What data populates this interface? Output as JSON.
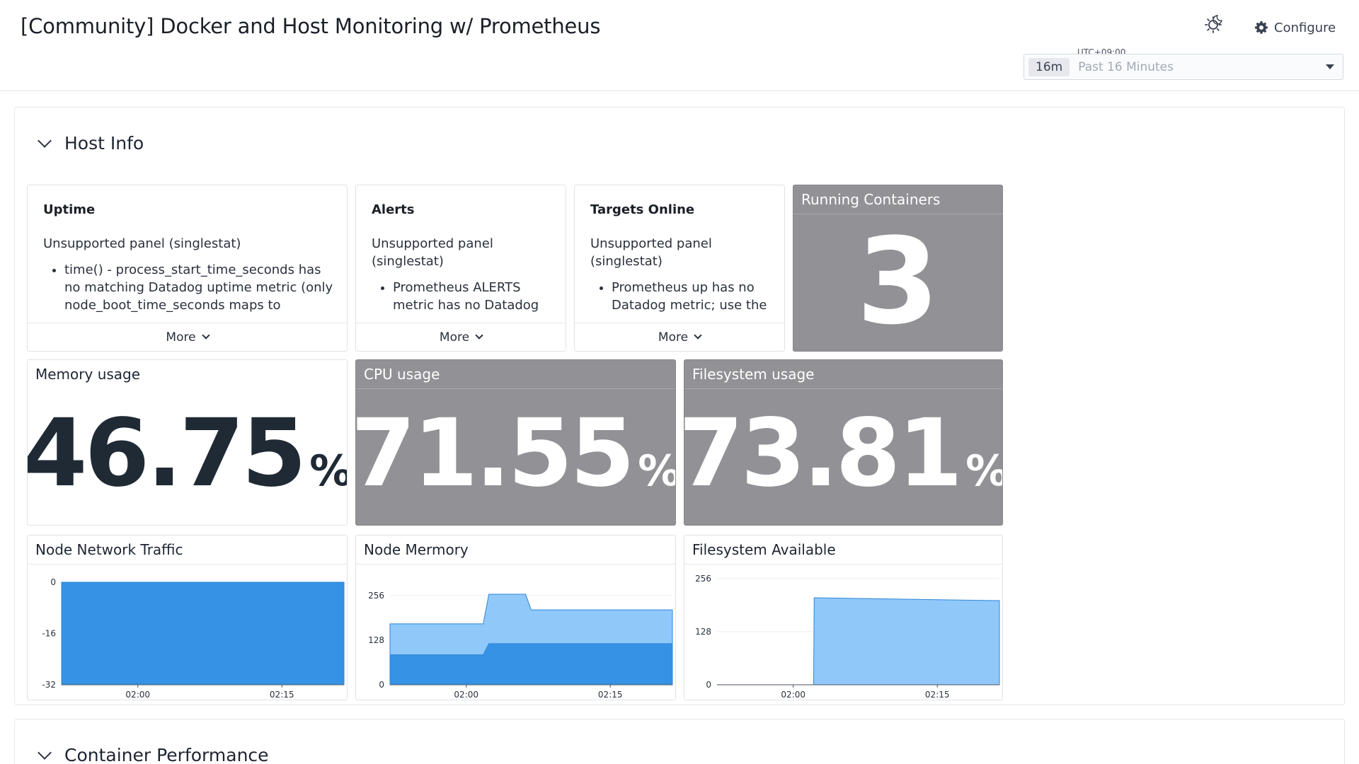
{
  "header": {
    "title": "[Community] Docker and Host Monitoring w/ Prometheus",
    "configure_label": "Configure",
    "timezone": "UTC+09:00",
    "time_badge": "16m",
    "time_range": "Past 16 Minutes"
  },
  "groups": [
    {
      "title": "Host Info"
    },
    {
      "title": "Container Performance"
    }
  ],
  "notes": {
    "uptime": {
      "title": "Uptime",
      "body": "Unsupported panel (singlestat)",
      "bullet": "time() - process_start_time_seconds has no matching Datadog uptime metric (only node_boot_time_seconds maps to",
      "more": "More"
    },
    "alerts": {
      "title": "Alerts",
      "body": "Unsupported panel (singlestat)",
      "bullet": "Prometheus ALERTS metric has no Datadog",
      "more": "More"
    },
    "targets": {
      "title": "Targets Online",
      "body": "Unsupported panel (singlestat)",
      "bullet": "Prometheus up has no Datadog metric; use the",
      "more": "More"
    }
  },
  "query_values": {
    "running_containers": {
      "title": "Running Containers",
      "value": "3"
    },
    "memory": {
      "title": "Memory usage",
      "value": "46.75",
      "unit": "%"
    },
    "cpu": {
      "title": "CPU usage",
      "value": "71.55",
      "unit": "%"
    },
    "filesystem": {
      "title": "Filesystem usage",
      "value": "73.81",
      "unit": "%"
    }
  },
  "colors": {
    "series_dark": "#3592e5",
    "series_light": "#91c8fa",
    "grey_widget": "#929195"
  },
  "chart_data": [
    {
      "type": "area",
      "title": "Node Network Traffic",
      "x_ticks": [
        "02:00",
        "02:15"
      ],
      "y_ticks": [
        "0",
        "-16",
        "-32"
      ],
      "ylim": [
        -32,
        0
      ],
      "series": [
        {
          "x": [
            0,
            1
          ],
          "values": [
            -32,
            -32
          ]
        }
      ]
    },
    {
      "type": "area",
      "title": "Node Mermory",
      "x_ticks": [
        "02:00",
        "02:15"
      ],
      "y_ticks": [
        "256",
        "128",
        "0"
      ],
      "ylim": [
        0,
        256
      ],
      "series": [
        {
          "x": [
            0,
            0.33,
            0.35,
            0.52,
            0.54,
            1
          ],
          "values": [
            86,
            86,
            118,
            118,
            118,
            118
          ]
        },
        {
          "x": [
            0,
            0.33,
            0.35,
            0.48,
            0.5,
            1
          ],
          "values": [
            175,
            175,
            260,
            260,
            215,
            215
          ]
        }
      ]
    },
    {
      "type": "area",
      "title": "Filesystem Available",
      "x_ticks": [
        "02:00",
        "02:15"
      ],
      "y_ticks": [
        "256",
        "128",
        "0"
      ],
      "ylim": [
        0,
        256
      ],
      "series": [
        {
          "x": [
            0,
            0.342,
            0.344,
            1
          ],
          "values": [
            0,
            0,
            210,
            203
          ]
        }
      ]
    }
  ]
}
